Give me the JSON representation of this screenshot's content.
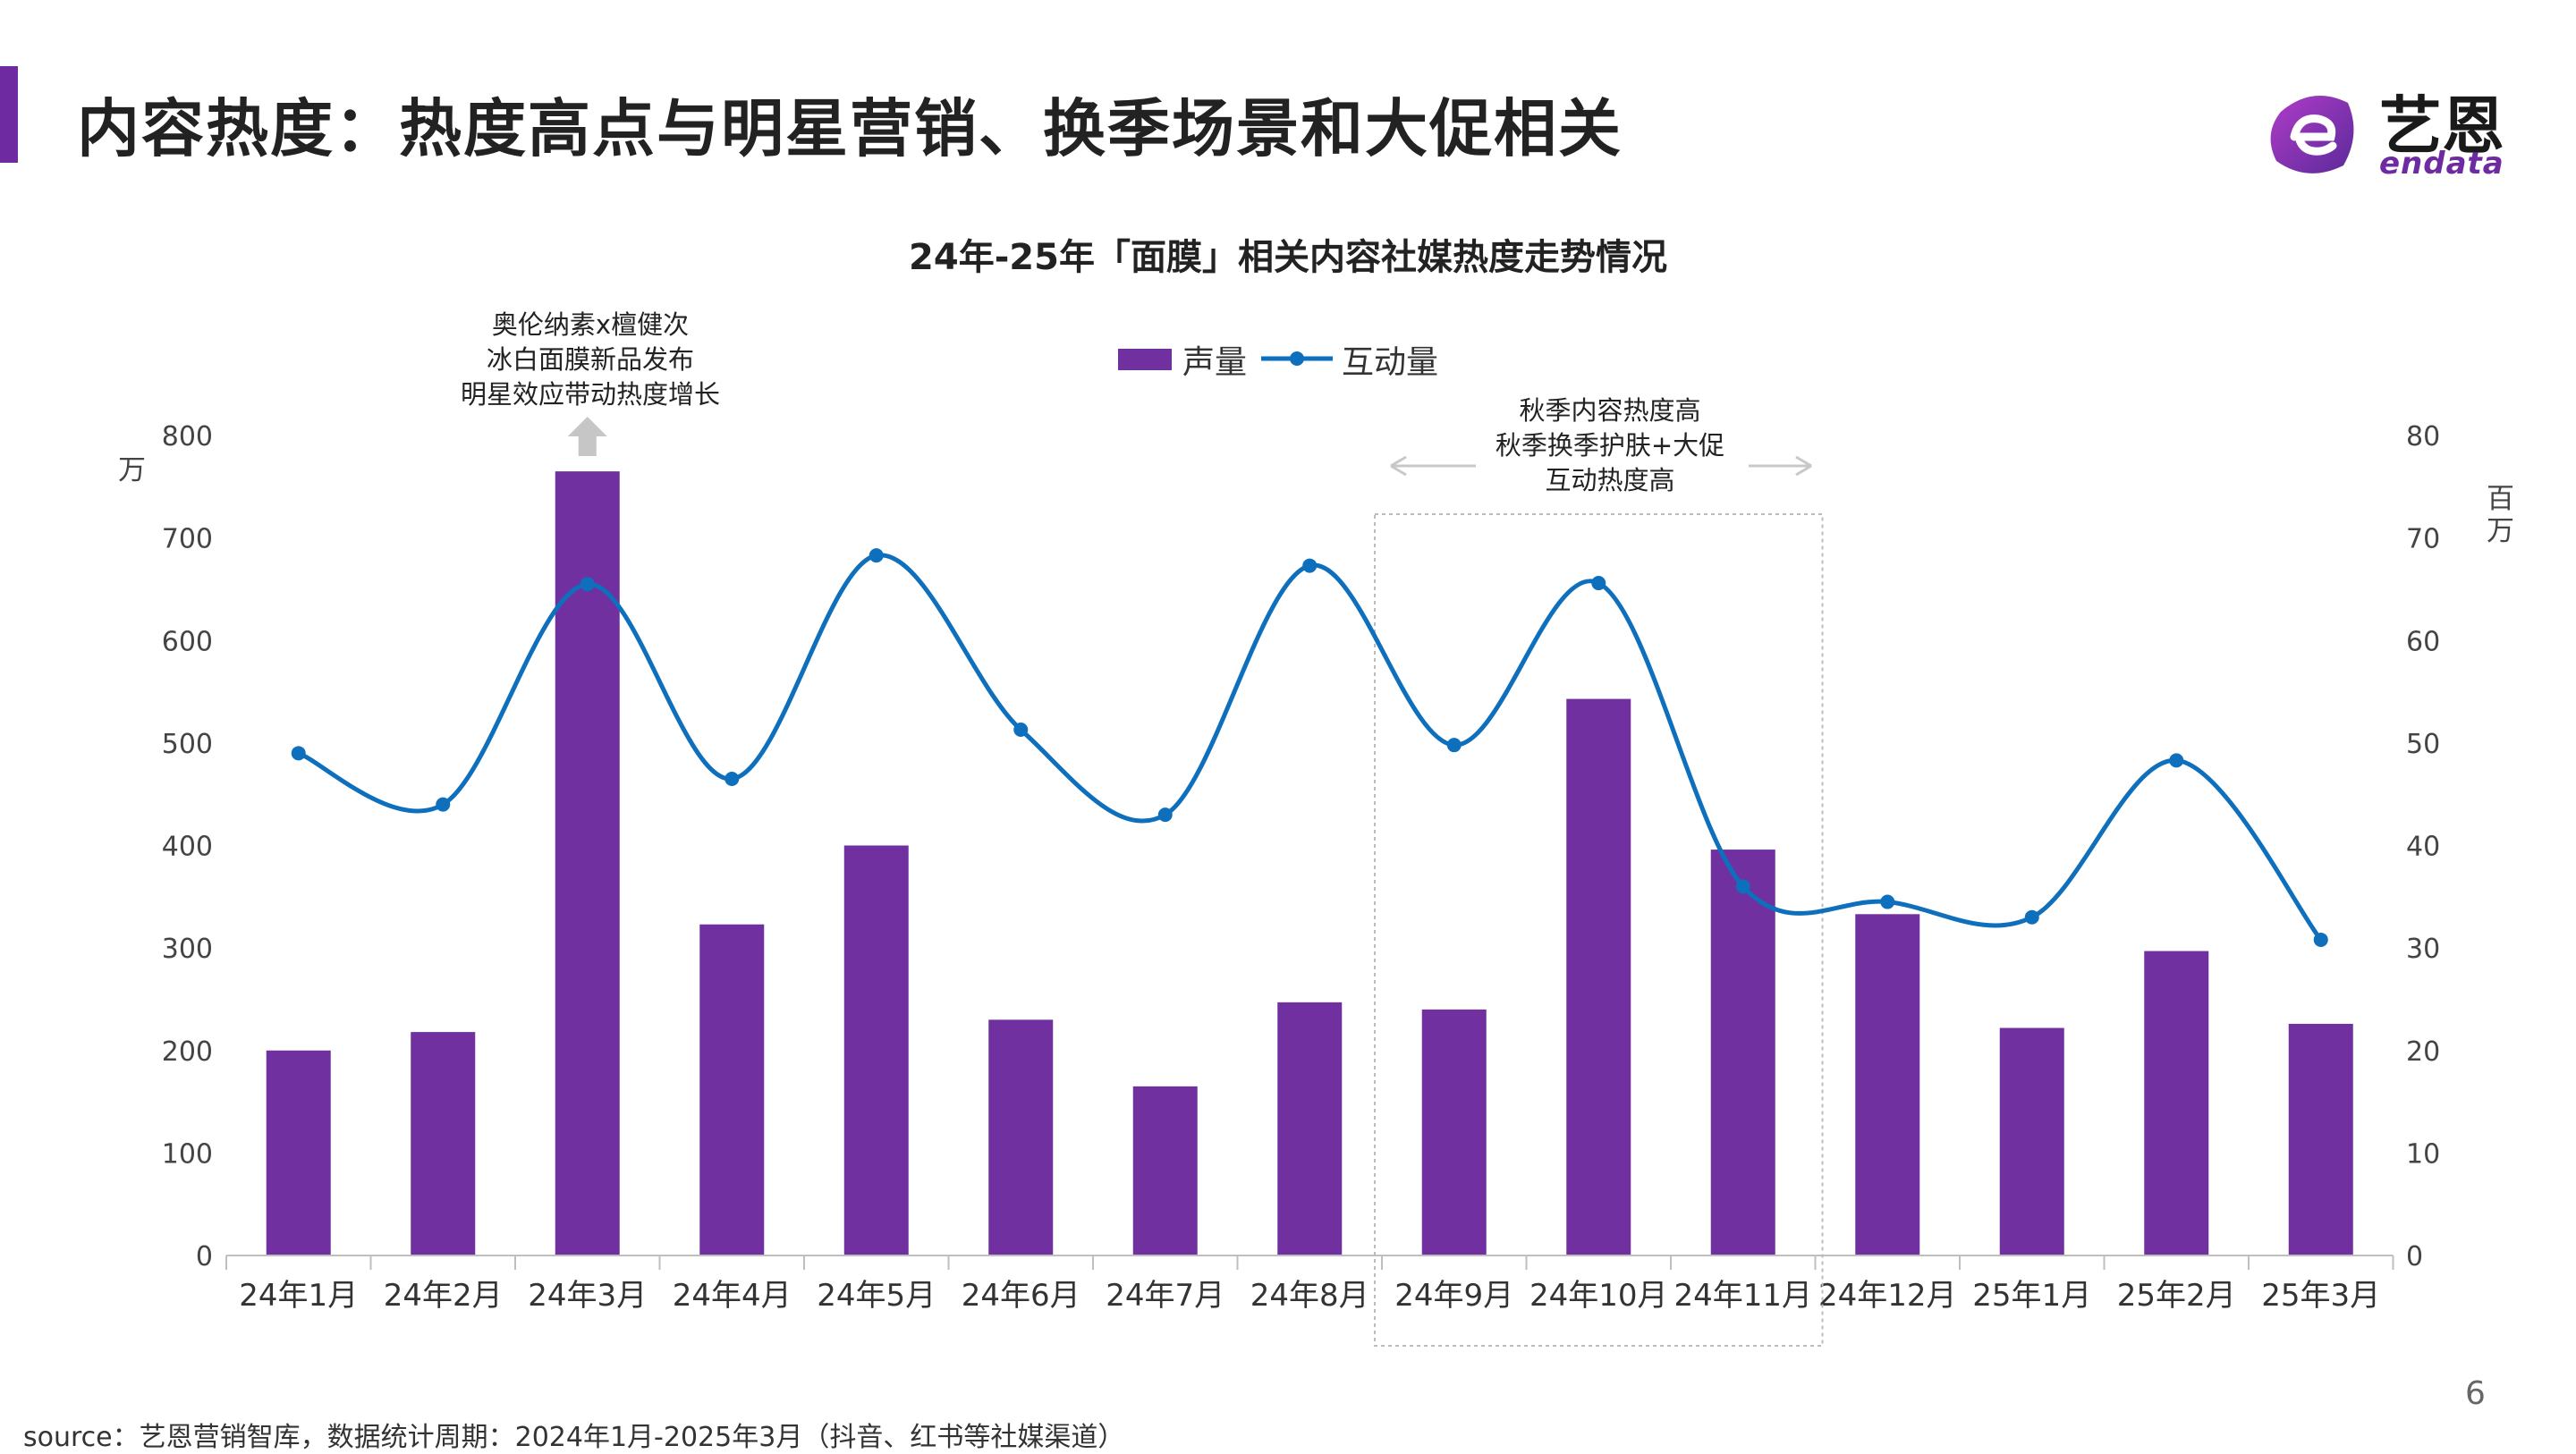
{
  "header": {
    "title": "内容热度：热度高点与明星营销、换季场景和大促相关"
  },
  "logo": {
    "name_cn": "艺恩",
    "name_en": "endata",
    "icon": "endata-logo-icon"
  },
  "colors": {
    "accent": "#7030a0",
    "bar": "#7030a0",
    "line": "#0e6fbd",
    "text": "#333333"
  },
  "chart_data": {
    "type": "bar",
    "title": "24年-25年「面膜」相关内容社媒热度走势情况",
    "categories": [
      "24年1月",
      "24年2月",
      "24年3月",
      "24年4月",
      "24年5月",
      "24年6月",
      "24年7月",
      "24年8月",
      "24年9月",
      "24年10月",
      "24年11月",
      "24年12月",
      "25年1月",
      "25年2月",
      "25年3月"
    ],
    "series": [
      {
        "name": "声量",
        "type": "bar",
        "axis": "left",
        "values": [
          200,
          218,
          765,
          323,
          400,
          230,
          165,
          247,
          240,
          543,
          396,
          333,
          222,
          297,
          226
        ]
      },
      {
        "name": "互动量",
        "type": "line",
        "axis": "right",
        "smooth": true,
        "values": [
          49,
          44,
          65.5,
          46.5,
          68.3,
          51.3,
          43,
          67.3,
          49.8,
          65.6,
          36,
          34.5,
          33,
          48.3,
          30.8
        ]
      }
    ],
    "y_left": {
      "label": "万",
      "ylim": [
        0,
        800
      ],
      "ticks": [
        0,
        100,
        200,
        300,
        400,
        500,
        600,
        700,
        800
      ]
    },
    "y_right": {
      "label": "百万",
      "ylim": [
        0,
        80
      ],
      "ticks": [
        0,
        10,
        20,
        30,
        40,
        50,
        60,
        70,
        80
      ]
    },
    "legend": {
      "position": "top-center"
    },
    "grid": false,
    "annotations": [
      {
        "lines": [
          "奥伦纳素x檀健次",
          "冰白面膜新品发布",
          "明星效应带动热度增长"
        ],
        "target": "24年3月"
      },
      {
        "lines": [
          "秋季内容热度高",
          "秋季换季护肤+大促",
          "互动热度高"
        ],
        "target": [
          "24年9月",
          "24年11月"
        ]
      }
    ]
  },
  "footer": {
    "source": "source：艺恩营销智库，数据统计周期：2024年1月-2025年3月（抖音、红书等社媒渠道）",
    "page_number": "6"
  }
}
